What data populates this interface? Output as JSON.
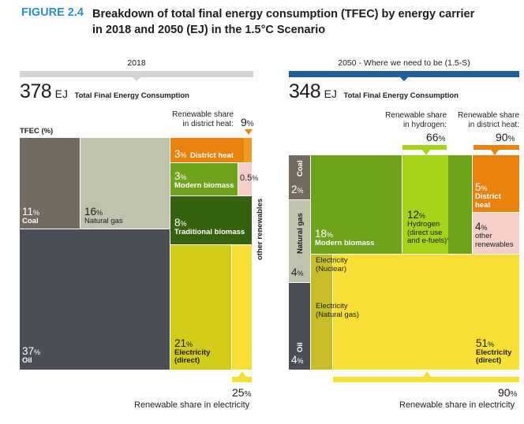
{
  "figure": {
    "number": "FIGURE 2.4",
    "title_line1": "Breakdown of total final energy consumption (TFEC) by energy carrier",
    "title_line2": "in 2018 and 2050 (EJ) in the 1.5°C Scenario"
  },
  "colors": {
    "grey_bar": "#d4d4d4",
    "blue_bar": "#245c9c",
    "coal": "#736a61",
    "gas": "#c0c2ad",
    "oil": "#4b4e57",
    "orange": "#e8820d",
    "light_orange": "#f29b1e",
    "pink": "#f5cfc8",
    "green_mb": "#6fa31c",
    "dark_green": "#36620f",
    "lime": "#a3d31a",
    "yellow": "#f6e033",
    "olive": "#d2cb17",
    "grey_yellow": "#c5be28",
    "accent": "#2b8fc6"
  },
  "left": {
    "year": "2018",
    "total": "378",
    "unit": "EJ",
    "total_label": "Total Final Energy Consumption",
    "tfec_pct": "TFEC (%)",
    "district_note_line1": "Renewable share",
    "district_note_line2": "in district heat:",
    "district_share_num": "9",
    "district_share_pct": "%",
    "coal": {
      "pct": "11",
      "unit": "%",
      "name": "Coal"
    },
    "gas": {
      "pct": "16",
      "unit": "%",
      "name": "Natural gas"
    },
    "oil": {
      "pct": "37",
      "unit": "%",
      "name": "Oil"
    },
    "district": {
      "pct": "3",
      "unit": "%",
      "name": "District heat"
    },
    "modern": {
      "pct": "3",
      "unit": "%",
      "name": "Modern biomass"
    },
    "other": {
      "pct": "0.5",
      "unit": "%"
    },
    "other_vertical": "other renewables",
    "traditional": {
      "pct": "8",
      "unit": "%",
      "name": "Traditional biomass"
    },
    "elec": {
      "pct": "21",
      "unit": "%",
      "name_line1": "Electricity",
      "name_line2": "(direct)"
    },
    "elec_share_num": "25",
    "elec_share_pct": "%",
    "elec_share_label": "Renewable share in electricity"
  },
  "right": {
    "year_label": "2050  -  Where we need to be (1.5-S)",
    "total": "348",
    "unit": "EJ",
    "total_label": "Total Final Energy Consumption",
    "hydro_note_line1": "Renewable share",
    "hydro_note_line2": "in hydrogen:",
    "hydro_share_num": "66",
    "hydro_share_pct": "%",
    "district_note_line1": "Renewable share",
    "district_note_line2": "in district heat:",
    "district_share_num": "90",
    "district_share_pct": "%",
    "coal": {
      "name": "Coal",
      "pct": "2",
      "unit": "%"
    },
    "gas": {
      "name": "Natural gas",
      "pct": "4",
      "unit": "%"
    },
    "oil": {
      "name": "Oil",
      "pct": "4",
      "unit": "%"
    },
    "modern": {
      "pct": "18",
      "unit": "%",
      "name": "Modern biomass"
    },
    "hydrogen": {
      "pct": "12",
      "unit": "%",
      "name_line1": "Hydrogen",
      "name_line2": "(direct use",
      "name_line3": "and e-fuels)*"
    },
    "district": {
      "pct": "5",
      "unit": "%",
      "name_line1": "District",
      "name_line2": "heat"
    },
    "other": {
      "pct": "4",
      "unit": "%",
      "name_line1": "other",
      "name_line2": "renewables"
    },
    "elec_nuclear_line1": "Electricity",
    "elec_nuclear_line2": "(Nuclear)",
    "elec_gas_line1": "Electricity",
    "elec_gas_line2": "(Natural gas)",
    "elec": {
      "pct": "51",
      "unit": "%",
      "name_line1": "Electricity",
      "name_line2": "(direct)"
    },
    "elec_share_num": "90",
    "elec_share_pct": "%",
    "elec_share_label": "Renewable share in electricity"
  },
  "chart_data": [
    {
      "type": "treemap",
      "title": "2018 – 378 EJ Total Final Energy Consumption",
      "unit": "% of TFEC",
      "categories": [
        "Coal",
        "Natural gas",
        "Oil",
        "District heat",
        "Modern biomass",
        "other renewables",
        "Traditional biomass",
        "Electricity (direct)"
      ],
      "values": [
        11,
        16,
        37,
        3,
        3,
        0.5,
        8,
        21
      ],
      "annotations": {
        "renewable_share_district_heat_pct": 9,
        "renewable_share_electricity_pct": 25
      }
    },
    {
      "type": "treemap",
      "title": "2050 – 348 EJ Total Final Energy Consumption (1.5-S)",
      "unit": "% of TFEC",
      "categories": [
        "Coal",
        "Natural gas",
        "Oil",
        "Modern biomass",
        "Hydrogen (direct use and e-fuels)",
        "District heat",
        "other renewables",
        "Electricity (direct)"
      ],
      "values": [
        2,
        4,
        4,
        18,
        12,
        5,
        4,
        51
      ],
      "annotations": {
        "renewable_share_hydrogen_pct": 66,
        "renewable_share_district_heat_pct": 90,
        "renewable_share_electricity_pct": 90
      }
    }
  ]
}
